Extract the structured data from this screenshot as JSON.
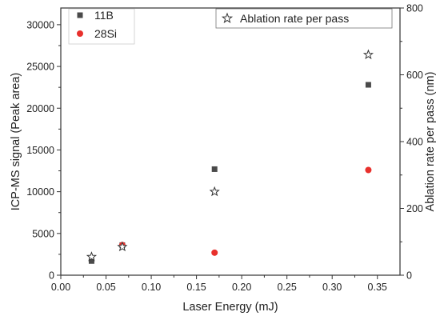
{
  "chart_data": {
    "type": "scatter",
    "xlabel": "Laser Energy (mJ)",
    "ylabel_left": "ICP-MS signal (Peak area)",
    "ylabel_right": "Ablation rate per pass (nm)",
    "xlim": [
      0.0,
      0.375
    ],
    "ylim_left": [
      0,
      32000
    ],
    "ylim_right": [
      0,
      800
    ],
    "x_ticks": [
      "0.00",
      "0.05",
      "0.10",
      "0.15",
      "0.20",
      "0.25",
      "0.30",
      "0.35"
    ],
    "x_tick_values": [
      0,
      0.05,
      0.1,
      0.15,
      0.2,
      0.25,
      0.3,
      0.35
    ],
    "y_left_ticks": [
      "0",
      "5000",
      "10000",
      "15000",
      "20000",
      "25000",
      "30000"
    ],
    "y_left_tick_values": [
      0,
      5000,
      10000,
      15000,
      20000,
      25000,
      30000
    ],
    "y_right_ticks": [
      "0",
      "200",
      "400",
      "600",
      "800"
    ],
    "y_right_tick_values": [
      0,
      200,
      400,
      600,
      800
    ],
    "grid": false,
    "legend_left_position": "top-left",
    "legend_right_position": "top-right",
    "series": [
      {
        "name": "11B",
        "axis": "left",
        "marker": "square",
        "color": "#4a4a4a",
        "x": [
          0.034,
          0.068,
          0.17,
          0.34
        ],
        "y": [
          1700,
          3600,
          12700,
          22800
        ]
      },
      {
        "name": "28Si",
        "axis": "left",
        "marker": "circle",
        "color": "#e8302c",
        "x": [
          0.068,
          0.17,
          0.34
        ],
        "y": [
          3600,
          2700,
          12600
        ]
      },
      {
        "name": "Ablation rate per pass",
        "axis": "right",
        "marker": "star-open",
        "color": "#333333",
        "x": [
          0.034,
          0.068,
          0.17,
          0.34
        ],
        "y": [
          55,
          85,
          250,
          660
        ]
      }
    ]
  }
}
